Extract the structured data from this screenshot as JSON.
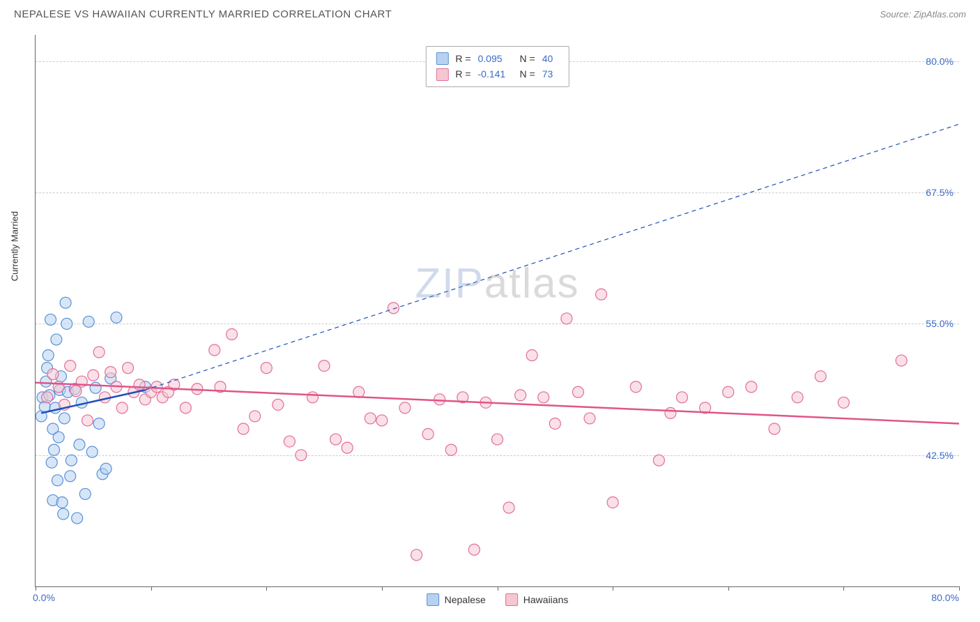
{
  "header": {
    "title": "NEPALESE VS HAWAIIAN CURRENTLY MARRIED CORRELATION CHART",
    "source_label": "Source: ZipAtlas.com"
  },
  "chart": {
    "type": "scatter",
    "y_axis_label": "Currently Married",
    "xlim": [
      0,
      80
    ],
    "ylim": [
      30,
      82.5
    ],
    "x_ticks_pct": [
      0,
      10,
      20,
      30,
      40,
      50,
      60,
      70,
      80
    ],
    "x_tick_labels": {
      "0": "0.0%",
      "80": "80.0%"
    },
    "y_ticks": [
      42.5,
      55.0,
      67.5,
      80.0
    ],
    "y_tick_labels": [
      "42.5%",
      "55.0%",
      "67.5%",
      "80.0%"
    ],
    "grid_color": "#cccccc",
    "axis_color": "#666666",
    "background_color": "#ffffff",
    "tick_label_color": "#3b6bc9",
    "tick_label_fontsize": 14,
    "axis_label_fontsize": 13,
    "marker_radius": 8,
    "marker_stroke_width": 1.2,
    "stats_box": {
      "rows": [
        {
          "r_label": "R =",
          "r_value": "0.095",
          "n_label": "N =",
          "n_value": "40",
          "swatch_fill": "#b7d1f0",
          "swatch_stroke": "#5a8fd6"
        },
        {
          "r_label": "R =",
          "r_value": "-0.141",
          "n_label": "N =",
          "n_value": "73",
          "swatch_fill": "#f6c6d3",
          "swatch_stroke": "#e16f98"
        }
      ]
    },
    "watermark": {
      "part1": "ZIP",
      "part2": "atlas"
    },
    "series": [
      {
        "name": "Nepalese",
        "color_fill": "#b7d1f0",
        "color_stroke": "#5a8fd6",
        "points": [
          [
            0.5,
            46.2
          ],
          [
            0.6,
            48.0
          ],
          [
            0.8,
            47.1
          ],
          [
            0.9,
            49.5
          ],
          [
            1.0,
            50.8
          ],
          [
            1.1,
            52.0
          ],
          [
            1.2,
            48.2
          ],
          [
            1.3,
            55.4
          ],
          [
            1.4,
            41.8
          ],
          [
            1.5,
            45.0
          ],
          [
            1.5,
            38.2
          ],
          [
            1.6,
            43.0
          ],
          [
            1.7,
            47.0
          ],
          [
            1.8,
            53.5
          ],
          [
            1.9,
            40.1
          ],
          [
            2.0,
            44.2
          ],
          [
            2.1,
            48.7
          ],
          [
            2.2,
            50.0
          ],
          [
            2.3,
            38.0
          ],
          [
            2.4,
            36.9
          ],
          [
            2.5,
            46.0
          ],
          [
            2.6,
            57.0
          ],
          [
            2.7,
            55.0
          ],
          [
            2.8,
            48.5
          ],
          [
            3.0,
            40.5
          ],
          [
            3.1,
            42.0
          ],
          [
            3.4,
            48.8
          ],
          [
            3.6,
            36.5
          ],
          [
            3.8,
            43.5
          ],
          [
            4.0,
            47.5
          ],
          [
            4.3,
            38.8
          ],
          [
            4.6,
            55.2
          ],
          [
            4.9,
            42.8
          ],
          [
            5.2,
            48.9
          ],
          [
            5.5,
            45.5
          ],
          [
            5.8,
            40.7
          ],
          [
            6.1,
            41.2
          ],
          [
            6.5,
            49.8
          ],
          [
            7.0,
            55.6
          ],
          [
            9.5,
            49.0
          ]
        ],
        "trend_solid": {
          "x1": 0.5,
          "y1": 46.5,
          "x2": 9.5,
          "y2": 48.7
        },
        "trend_dashed": {
          "x1": 9.5,
          "y1": 48.7,
          "x2": 80,
          "y2": 74.0
        }
      },
      {
        "name": "Hawaiians",
        "color_fill": "#f6c6d3",
        "color_stroke": "#e16f98",
        "points": [
          [
            1.0,
            48.0
          ],
          [
            1.5,
            50.2
          ],
          [
            2.0,
            49.0
          ],
          [
            2.5,
            47.3
          ],
          [
            3.0,
            51.0
          ],
          [
            3.5,
            48.6
          ],
          [
            4.0,
            49.5
          ],
          [
            4.5,
            45.8
          ],
          [
            5.0,
            50.1
          ],
          [
            5.5,
            52.3
          ],
          [
            6.0,
            48.0
          ],
          [
            6.5,
            50.4
          ],
          [
            7.0,
            49.0
          ],
          [
            7.5,
            47.0
          ],
          [
            8.0,
            50.8
          ],
          [
            8.5,
            48.5
          ],
          [
            9.0,
            49.2
          ],
          [
            9.5,
            47.8
          ],
          [
            10.0,
            48.5
          ],
          [
            10.5,
            49.0
          ],
          [
            11.0,
            48.0
          ],
          [
            11.5,
            48.5
          ],
          [
            12.0,
            49.2
          ],
          [
            13.0,
            47.0
          ],
          [
            14.0,
            48.8
          ],
          [
            15.5,
            52.5
          ],
          [
            16.0,
            49.0
          ],
          [
            17.0,
            54.0
          ],
          [
            18.0,
            45.0
          ],
          [
            19.0,
            46.2
          ],
          [
            20.0,
            50.8
          ],
          [
            21.0,
            47.3
          ],
          [
            22.0,
            43.8
          ],
          [
            23.0,
            42.5
          ],
          [
            24.0,
            48.0
          ],
          [
            25.0,
            51.0
          ],
          [
            26.0,
            44.0
          ],
          [
            27.0,
            43.2
          ],
          [
            28.0,
            48.5
          ],
          [
            29.0,
            46.0
          ],
          [
            30.0,
            45.8
          ],
          [
            31.0,
            56.5
          ],
          [
            32.0,
            47.0
          ],
          [
            33.0,
            33.0
          ],
          [
            34.0,
            44.5
          ],
          [
            35.0,
            47.8
          ],
          [
            36.0,
            43.0
          ],
          [
            37.0,
            48.0
          ],
          [
            38.0,
            33.5
          ],
          [
            39.0,
            47.5
          ],
          [
            40.0,
            44.0
          ],
          [
            41.0,
            37.5
          ],
          [
            42.0,
            48.2
          ],
          [
            43.0,
            52.0
          ],
          [
            44.0,
            48.0
          ],
          [
            45.0,
            45.5
          ],
          [
            46.0,
            55.5
          ],
          [
            47.0,
            48.5
          ],
          [
            48.0,
            46.0
          ],
          [
            49.0,
            57.8
          ],
          [
            50.0,
            38.0
          ],
          [
            52.0,
            49.0
          ],
          [
            54.0,
            42.0
          ],
          [
            55.0,
            46.5
          ],
          [
            56.0,
            48.0
          ],
          [
            58.0,
            47.0
          ],
          [
            60.0,
            48.5
          ],
          [
            62.0,
            49.0
          ],
          [
            64.0,
            45.0
          ],
          [
            66.0,
            48.0
          ],
          [
            68.0,
            50.0
          ],
          [
            70.0,
            47.5
          ],
          [
            75.0,
            51.5
          ]
        ],
        "trend_solid": {
          "x1": 0,
          "y1": 49.4,
          "x2": 80,
          "y2": 45.5
        }
      }
    ],
    "legend": [
      {
        "label": "Nepalese",
        "fill": "#b7d1f0",
        "stroke": "#5a8fd6"
      },
      {
        "label": "Hawaiians",
        "fill": "#f6c6d3",
        "stroke": "#e16f98"
      }
    ],
    "trend_line_width": 2.5,
    "trend_dash": "6,5",
    "solid_trend_color_nepalese": "#1f4fb8",
    "solid_trend_color_hawaiians": "#e0548a"
  }
}
